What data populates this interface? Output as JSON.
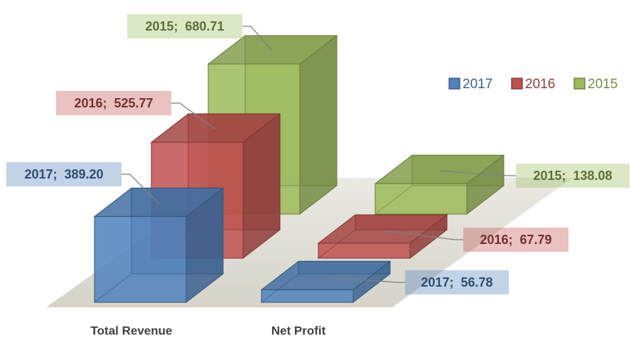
{
  "chart_data": {
    "type": "bar3d",
    "categories": [
      "Total Revenue",
      "Net Profit"
    ],
    "series": [
      {
        "name": "2017",
        "color": "#4f81bd",
        "values": [
          389.2,
          56.78
        ],
        "value_labels": [
          "2017;  389.20",
          "2017;  56.78"
        ]
      },
      {
        "name": "2016",
        "color": "#c0504d",
        "values": [
          525.77,
          67.79
        ],
        "value_labels": [
          "2016;  525.77",
          "2016;  67.79"
        ]
      },
      {
        "name": "2015",
        "color": "#9bbb59",
        "values": [
          680.71,
          138.08
        ],
        "value_labels": [
          "2015;  680.71",
          "2015;  138.08"
        ]
      }
    ],
    "legend": "top-right"
  }
}
